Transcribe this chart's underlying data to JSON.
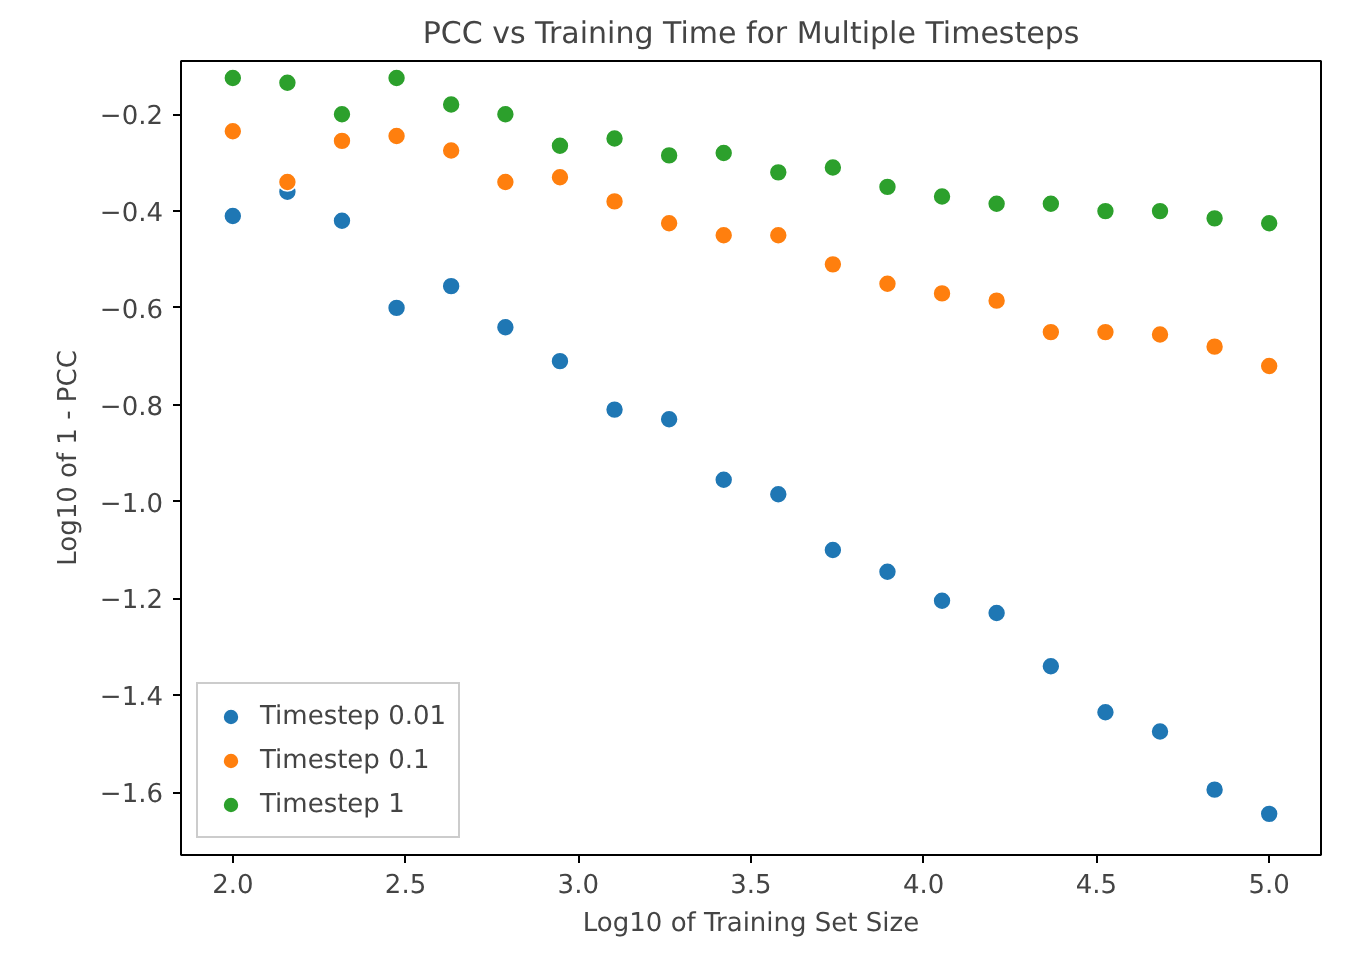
{
  "chart_data": {
    "type": "scatter",
    "title": "PCC vs Training Time for Multiple Timesteps",
    "xlabel": "Log10 of Training Set Size",
    "ylabel": "Log10 of 1 - PCC",
    "x": [
      2.0,
      2.158,
      2.316,
      2.474,
      2.632,
      2.789,
      2.947,
      3.105,
      3.263,
      3.421,
      3.579,
      3.737,
      3.895,
      4.053,
      4.211,
      4.368,
      4.526,
      4.684,
      4.842,
      5.0
    ],
    "series": [
      {
        "name": "Timestep 0.01",
        "color": "#1f77b4",
        "values": [
          -0.41,
          -0.36,
          -0.42,
          -0.6,
          -0.555,
          -0.64,
          -0.71,
          -0.81,
          -0.83,
          -0.955,
          -0.985,
          -1.1,
          -1.145,
          -1.205,
          -1.23,
          -1.34,
          -1.435,
          -1.475,
          -1.595,
          -1.645
        ]
      },
      {
        "name": "Timestep 0.1",
        "color": "#ff7f0e",
        "values": [
          -0.235,
          -0.34,
          -0.255,
          -0.245,
          -0.275,
          -0.34,
          -0.33,
          -0.38,
          -0.425,
          -0.45,
          -0.45,
          -0.51,
          -0.55,
          -0.57,
          -0.585,
          -0.65,
          -0.65,
          -0.655,
          -0.68,
          -0.72
        ]
      },
      {
        "name": "Timestep 1",
        "color": "#2ca02c",
        "values": [
          -0.125,
          -0.135,
          -0.2,
          -0.125,
          -0.18,
          -0.2,
          -0.265,
          -0.25,
          -0.285,
          -0.28,
          -0.32,
          -0.31,
          -0.35,
          -0.37,
          -0.385,
          -0.385,
          -0.4,
          -0.4,
          -0.415,
          -0.425
        ]
      }
    ],
    "xlim": [
      1.85,
      5.15
    ],
    "ylim": [
      -1.73,
      -0.09
    ],
    "xticks": [
      {
        "value": 2.0,
        "label": "2.0"
      },
      {
        "value": 2.5,
        "label": "2.5"
      },
      {
        "value": 3.0,
        "label": "3.0"
      },
      {
        "value": 3.5,
        "label": "3.5"
      },
      {
        "value": 4.0,
        "label": "4.0"
      },
      {
        "value": 4.5,
        "label": "4.5"
      },
      {
        "value": 5.0,
        "label": "5.0"
      }
    ],
    "yticks": [
      {
        "value": -1.6,
        "label": "−1.6"
      },
      {
        "value": -1.4,
        "label": "−1.4"
      },
      {
        "value": -1.2,
        "label": "−1.2"
      },
      {
        "value": -1.0,
        "label": "−1.0"
      },
      {
        "value": -0.8,
        "label": "−0.8"
      },
      {
        "value": -0.6,
        "label": "−0.6"
      },
      {
        "value": -0.4,
        "label": "−0.4"
      },
      {
        "value": -0.2,
        "label": "−0.2"
      }
    ],
    "grid": false,
    "legend": "bottom left",
    "marker": "circle"
  }
}
